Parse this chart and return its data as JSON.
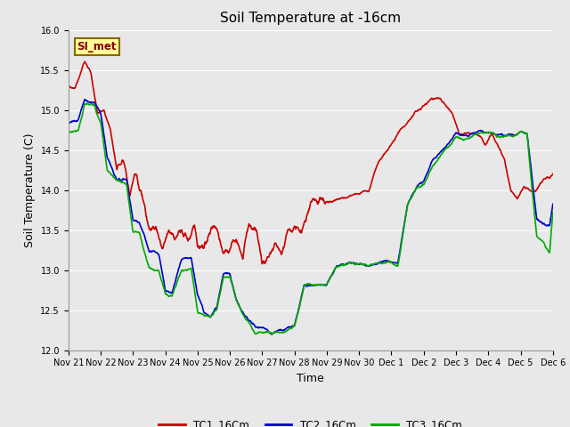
{
  "title": "Soil Temperature at -16cm",
  "xlabel": "Time",
  "ylabel": "Soil Temperature (C)",
  "ylim": [
    12.0,
    16.0
  ],
  "yticks": [
    12.0,
    12.5,
    13.0,
    13.5,
    14.0,
    14.5,
    15.0,
    15.5,
    16.0
  ],
  "xtick_labels": [
    "Nov 21",
    "Nov 22",
    "Nov 23",
    "Nov 24",
    "Nov 25",
    "Nov 26",
    "Nov 27",
    "Nov 28",
    "Nov 29",
    "Nov 30",
    "Dec 1",
    "Dec 2",
    "Dec 3",
    "Dec 4",
    "Dec 5",
    "Dec 6"
  ],
  "colors": {
    "TC1": "#cc0000",
    "TC2": "#0000cc",
    "TC3": "#00aa00"
  },
  "line_width": 1.2,
  "bg_color": "#e8e8e8",
  "plot_bg_color": "#e8e8e8",
  "legend_label": "SI_met",
  "legend_bg": "#ffff99",
  "legend_border": "#886600",
  "figsize": [
    6.4,
    4.8
  ],
  "dpi": 100,
  "grid_color": "#ffffff",
  "tick_fontsize": 7,
  "label_fontsize": 9,
  "title_fontsize": 11
}
